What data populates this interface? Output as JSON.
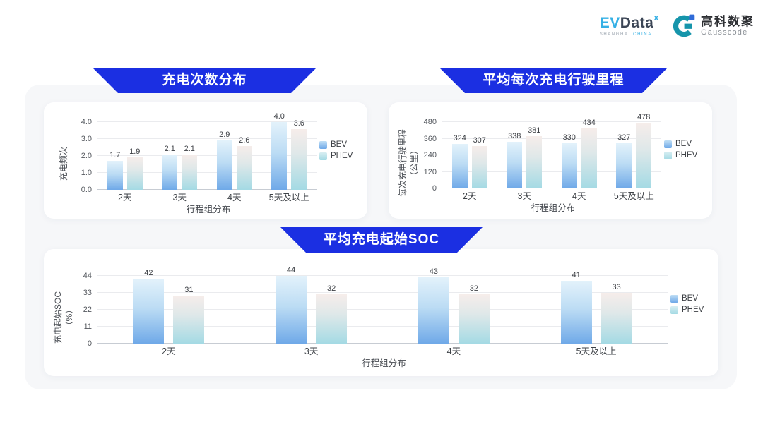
{
  "header": {
    "evdata": {
      "ev": "EV",
      "data": "Data",
      "x": "x",
      "sub1": "SHANGHAI",
      "sub2": "CHINA"
    },
    "gausscode": {
      "cn": "高科数聚",
      "en": "Gausscode"
    }
  },
  "colors": {
    "banner_blue": "#1b2fe2",
    "panel_bg": "#f6f7f9",
    "card_bg": "#ffffff",
    "bev_gradient_top": "#e3f2fb",
    "bev_gradient_bottom": "#6fa9e8",
    "phev_gradient_top": "#f6edea",
    "phev_gradient_bottom": "#a4dae4"
  },
  "chart_data": [
    {
      "type": "bar",
      "title": "充电次数分布",
      "xlabel": "行程组分布",
      "ylabel_lines": [
        "充电频次"
      ],
      "categories": [
        "2天",
        "3天",
        "4天",
        "5天及以上"
      ],
      "yticks": [
        "0.0",
        "1.0",
        "2.0",
        "3.0",
        "4.0"
      ],
      "ylim": [
        0,
        4.6
      ],
      "grid": true,
      "legend_position": "right",
      "legend": [
        "BEV",
        "PHEV"
      ],
      "series": [
        {
          "name": "BEV",
          "values": [
            1.7,
            2.1,
            2.9,
            4.0
          ],
          "labels": [
            "1.7",
            "2.1",
            "2.9",
            "4.0"
          ]
        },
        {
          "name": "PHEV",
          "values": [
            1.9,
            2.1,
            2.6,
            3.6
          ],
          "labels": [
            "1.9",
            "2.1",
            "2.6",
            "3.6"
          ]
        }
      ]
    },
    {
      "type": "bar",
      "title": "平均每次充电行驶里程",
      "xlabel": "行程组分布",
      "ylabel_lines": [
        "每次充电行驶里程",
        "（公里）"
      ],
      "categories": [
        "2天",
        "3天",
        "4天",
        "5天及以上"
      ],
      "yticks": [
        "0",
        "120",
        "240",
        "360",
        "480"
      ],
      "ylim": [
        0,
        560
      ],
      "grid": true,
      "legend_position": "right",
      "legend": [
        "BEV",
        "PHEV"
      ],
      "series": [
        {
          "name": "BEV",
          "values": [
            324,
            338,
            330,
            327
          ],
          "labels": [
            "324",
            "338",
            "330",
            "327"
          ]
        },
        {
          "name": "PHEV",
          "values": [
            307,
            381,
            434,
            478
          ],
          "labels": [
            "307",
            "381",
            "434",
            "478"
          ]
        }
      ]
    },
    {
      "type": "bar",
      "title": "平均充电起始SOC",
      "xlabel": "行程组分布",
      "ylabel_lines": [
        "充电起始SOC",
        "（%）"
      ],
      "categories": [
        "2天",
        "3天",
        "4天",
        "5天及以上"
      ],
      "yticks": [
        "0",
        "11",
        "22",
        "33",
        "44"
      ],
      "ylim": [
        0,
        51
      ],
      "grid": true,
      "legend_position": "right",
      "legend": [
        "BEV",
        "PHEV"
      ],
      "series": [
        {
          "name": "BEV",
          "values": [
            42,
            44,
            43,
            41
          ],
          "labels": [
            "42",
            "44",
            "43",
            "41"
          ]
        },
        {
          "name": "PHEV",
          "values": [
            31,
            32,
            32,
            33
          ],
          "labels": [
            "31",
            "32",
            "32",
            "33"
          ]
        }
      ]
    }
  ]
}
